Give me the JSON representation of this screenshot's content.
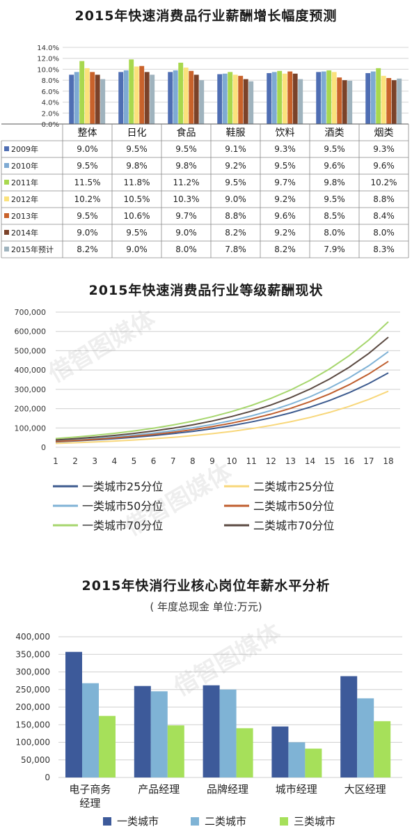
{
  "titles": {
    "chart1": "2015年快速消费品行业薪酬增长幅度预测",
    "chart2": "2015年快速消费品行业等级薪酬现状",
    "chart3": "2015年快消行业核心岗位年薪水平分析",
    "chart3_sub": "( 年度总现金   单位:万元)"
  },
  "watermark": "借智图媒体",
  "chart_data": [
    {
      "type": "bar",
      "title": "2015年快速消费品行业薪酬增长幅度预测",
      "categories": [
        "整体",
        "日化",
        "食品",
        "鞋服",
        "饮料",
        "酒类",
        "烟类"
      ],
      "yticks": [
        "0.0%",
        "2.0%",
        "4.0%",
        "6.0%",
        "8.0%",
        "10.0%",
        "12.0%",
        "14.0%"
      ],
      "ylim": [
        0,
        14
      ],
      "series": [
        {
          "name": "2009年",
          "color": "#4f6eb3",
          "values": [
            9.0,
            9.5,
            9.5,
            9.1,
            9.3,
            9.5,
            9.3
          ],
          "labels": [
            "9.0%",
            "9.5%",
            "9.5%",
            "9.1%",
            "9.3%",
            "9.5%",
            "9.3%"
          ]
        },
        {
          "name": "2010年",
          "color": "#7eaad3",
          "values": [
            9.5,
            9.8,
            9.8,
            9.2,
            9.5,
            9.6,
            9.6
          ],
          "labels": [
            "9.5%",
            "9.8%",
            "9.8%",
            "9.2%",
            "9.5%",
            "9.6%",
            "9.6%"
          ]
        },
        {
          "name": "2011年",
          "color": "#a8d84e",
          "values": [
            11.5,
            11.8,
            11.2,
            9.5,
            9.7,
            9.8,
            10.2
          ],
          "labels": [
            "11.5%",
            "11.8%",
            "11.2%",
            "9.5%",
            "9.7%",
            "9.8%",
            "10.2%"
          ]
        },
        {
          "name": "2012年",
          "color": "#fbe27c",
          "values": [
            10.2,
            10.5,
            10.3,
            9.0,
            9.2,
            9.5,
            8.8
          ],
          "labels": [
            "10.2%",
            "10.5%",
            "10.3%",
            "9.0%",
            "9.2%",
            "9.5%",
            "8.8%"
          ]
        },
        {
          "name": "2013年",
          "color": "#c9622b",
          "values": [
            9.5,
            10.6,
            9.7,
            8.8,
            9.6,
            8.5,
            8.4
          ],
          "labels": [
            "9.5%",
            "10.6%",
            "9.7%",
            "8.8%",
            "9.6%",
            "8.5%",
            "8.4%"
          ]
        },
        {
          "name": "2014年",
          "color": "#7b4229",
          "values": [
            9.0,
            9.5,
            9.0,
            8.2,
            9.2,
            8.0,
            8.0
          ],
          "labels": [
            "9.0%",
            "9.5%",
            "9.0%",
            "8.2%",
            "9.2%",
            "8.0%",
            "8.0%"
          ]
        },
        {
          "name": "2015年预计",
          "color": "#9fb3be",
          "values": [
            8.2,
            9.0,
            8.0,
            7.8,
            8.2,
            7.9,
            8.3
          ],
          "labels": [
            "8.2%",
            "9.0%",
            "8.0%",
            "7.8%",
            "8.2%",
            "7.9%",
            "8.3%"
          ]
        }
      ]
    },
    {
      "type": "line",
      "title": "2015年快速消费品行业等级薪酬现状",
      "x": [
        1,
        2,
        3,
        4,
        5,
        6,
        7,
        8,
        9,
        10,
        11,
        12,
        13,
        14,
        15,
        16,
        17,
        18
      ],
      "yticks": [
        "0",
        "100,000",
        "200,000",
        "300,000",
        "400,000",
        "500,000",
        "600,000",
        "700,000"
      ],
      "ylim": [
        0,
        700000
      ],
      "series": [
        {
          "name": "一类城市25分位",
          "color": "#3c5a8e",
          "start": 28000,
          "end": 385000
        },
        {
          "name": "一类城市50分位",
          "color": "#7fb2d6",
          "start": 33000,
          "end": 495000
        },
        {
          "name": "一类城市70分位",
          "color": "#a6d66d",
          "start": 45000,
          "end": 650000
        },
        {
          "name": "二类城市25分位",
          "color": "#f8d77a",
          "start": 20000,
          "end": 290000
        },
        {
          "name": "二类城市50分位",
          "color": "#bf5e2e",
          "start": 30000,
          "end": 445000
        },
        {
          "name": "二类城市70分位",
          "color": "#5b4a42",
          "start": 38000,
          "end": 570000
        }
      ]
    },
    {
      "type": "bar",
      "title": "2015年快消行业核心岗位年薪水平分析",
      "categories": [
        "电子商务经理",
        "产品经理",
        "品牌经理",
        "城市经理",
        "大区经理"
      ],
      "category_lines": [
        [
          "电子商务",
          "经理"
        ],
        [
          "产品经理"
        ],
        [
          "品牌经理"
        ],
        [
          "城市经理"
        ],
        [
          "大区经理"
        ]
      ],
      "yticks": [
        "0",
        "50,000",
        "100,000",
        "150,000",
        "200,000",
        "250,000",
        "300,000",
        "350,000",
        "400,000"
      ],
      "ylim": [
        0,
        400000
      ],
      "series": [
        {
          "name": "一类城市",
          "color": "#3d5a9a",
          "values": [
            357000,
            260000,
            262000,
            145000,
            288000
          ]
        },
        {
          "name": "二类城市",
          "color": "#7fb3d5",
          "values": [
            268000,
            245000,
            250000,
            100000,
            225000
          ]
        },
        {
          "name": "三类城市",
          "color": "#a6e05a",
          "values": [
            175000,
            148000,
            140000,
            82000,
            160000
          ]
        }
      ]
    }
  ]
}
